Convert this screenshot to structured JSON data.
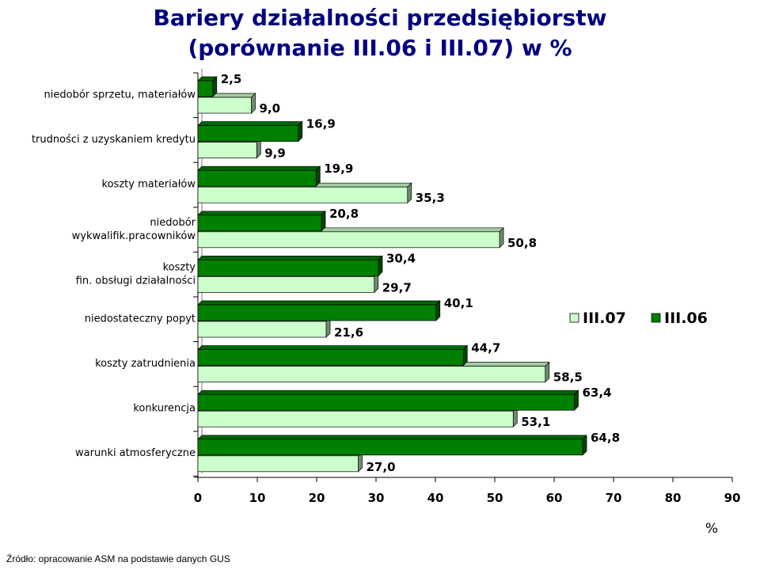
{
  "chart_data": {
    "type": "bar",
    "orientation": "horizontal",
    "title": [
      "Bariery działalności przedsiębiorstw",
      "(porównanie III.06 i III.07) w %"
    ],
    "categories": [
      "niedobór sprzetu, materiałów",
      "trudności z uzyskaniem kredytu",
      "koszty materiałów",
      "niedobór wykwalifik.pracowników",
      "koszty fin. obsługi działalności",
      "niedostateczny popyt",
      "koszty zatrudnienia",
      "konkurencja",
      "warunki atmosferyczne"
    ],
    "series": [
      {
        "name": "III.07",
        "values": [
          9.0,
          9.9,
          35.3,
          50.8,
          29.7,
          21.6,
          58.5,
          53.1,
          27.0
        ],
        "color": "#ccffcc"
      },
      {
        "name": "III.06",
        "values": [
          2.5,
          16.9,
          19.9,
          20.8,
          30.4,
          40.1,
          44.7,
          63.4,
          64.8
        ],
        "color": "#008000"
      }
    ],
    "data_labels": {
      "III.07": [
        "9,0",
        "9,9",
        "35,3",
        "50,8",
        "29,7",
        "21,6",
        "58,5",
        "53,1",
        "27,0"
      ],
      "III.06": [
        "2,5",
        "16,9",
        "19,9",
        "20,8",
        "30,4",
        "40,1",
        "44,7",
        "63,4",
        "64,8"
      ]
    },
    "xlim": [
      0,
      90
    ],
    "xticks": [
      "0",
      "10",
      "20",
      "30",
      "40",
      "50",
      "60",
      "70",
      "80",
      "90"
    ],
    "xlabel": "%",
    "ylabel": "",
    "legend_position": "right",
    "grid": false,
    "style": "3d"
  },
  "source_note": "Źródło: opracowanie ASM na podstawie danych GUS"
}
